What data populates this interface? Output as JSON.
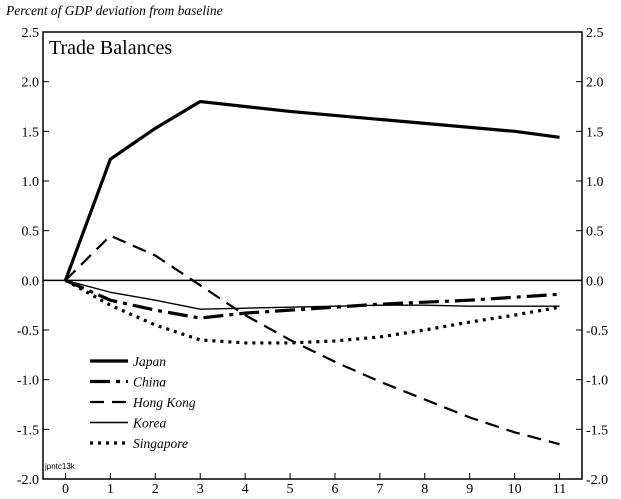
{
  "chart_data": {
    "type": "line",
    "title": "Trade Balances",
    "ylabel": "Percent of GDP deviation from baseline",
    "xlabel": "",
    "x": [
      0,
      1,
      2,
      3,
      4,
      5,
      6,
      7,
      8,
      9,
      10,
      11
    ],
    "xlim": [
      -0.5,
      11.5
    ],
    "ylim": [
      -2.0,
      2.5
    ],
    "xticks": [
      "0",
      "1",
      "2",
      "3",
      "4",
      "5",
      "6",
      "7",
      "8",
      "9",
      "10",
      "11"
    ],
    "yticks_left": [
      "2.5",
      "2.0",
      "1.5",
      "1.0",
      "0.5",
      "0.0",
      "-0.5",
      "-1.0",
      "-1.5",
      "-2.0"
    ],
    "yticks_right": [
      "2.5",
      "2.0",
      "1.5",
      "1.0",
      "0.5",
      "0.0",
      "-0.5",
      "-1.0",
      "-1.5",
      "-2.0"
    ],
    "ytick_values": [
      2.5,
      2.0,
      1.5,
      1.0,
      0.5,
      0.0,
      -0.5,
      -1.0,
      -1.5,
      -2.0
    ],
    "zero_line": true,
    "grid": false,
    "legend_position": "bottom-left",
    "series": [
      {
        "name": "Japan",
        "style": "solid-thick",
        "values": [
          0.0,
          1.22,
          1.53,
          1.8,
          1.75,
          1.7,
          1.66,
          1.62,
          1.58,
          1.54,
          1.5,
          1.44
        ]
      },
      {
        "name": "China",
        "style": "long-dash-thick",
        "values": [
          0.0,
          -0.2,
          -0.3,
          -0.38,
          -0.33,
          -0.3,
          -0.27,
          -0.24,
          -0.22,
          -0.2,
          -0.17,
          -0.14
        ]
      },
      {
        "name": "Hong Kong",
        "style": "dashed",
        "values": [
          0.0,
          0.45,
          0.25,
          -0.05,
          -0.35,
          -0.6,
          -0.82,
          -1.02,
          -1.2,
          -1.38,
          -1.53,
          -1.65
        ]
      },
      {
        "name": "Korea",
        "style": "solid-thin",
        "values": [
          0.0,
          -0.12,
          -0.2,
          -0.29,
          -0.28,
          -0.27,
          -0.26,
          -0.25,
          -0.25,
          -0.26,
          -0.26,
          -0.26
        ]
      },
      {
        "name": "Singapore",
        "style": "dotted-thick",
        "values": [
          0.0,
          -0.25,
          -0.45,
          -0.6,
          -0.63,
          -0.63,
          -0.61,
          -0.57,
          -0.5,
          -0.42,
          -0.35,
          -0.27
        ]
      }
    ],
    "footnote": "jpntc13k"
  }
}
